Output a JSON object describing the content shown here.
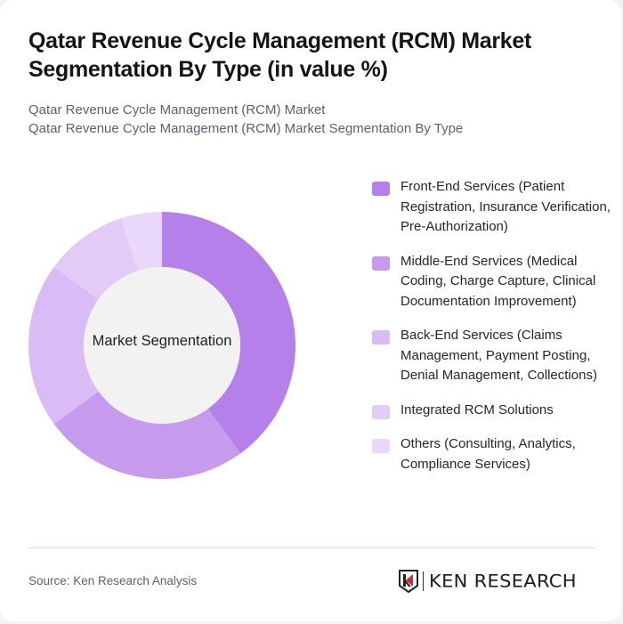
{
  "title": "Qatar Revenue Cycle Management (RCM) Market Segmentation By Type (in value %)",
  "subtitle": {
    "line1": "Qatar Revenue Cycle Management (RCM) Market",
    "line2": "Qatar Revenue Cycle Management (RCM) Market Segmentation By Type"
  },
  "center_label": "Market Segmentation",
  "legend": [
    {
      "label": "Front-End Services (Patient Registration, Insurance Verification, Pre-Authorization)",
      "color": "#b580ea"
    },
    {
      "label": "Middle-End Services (Medical Coding, Charge Capture, Clinical Documentation Improvement)",
      "color": "#c69bee"
    },
    {
      "label": "Back-End Services (Claims Management, Payment Posting, Denial Management, Collections)",
      "color": "#d9bcf5"
    },
    {
      "label": "Integrated RCM Solutions",
      "color": "#e2cbf7"
    },
    {
      "label": "Others (Consulting, Analytics, Compliance Services)",
      "color": "#e9d8fa"
    }
  ],
  "footer": {
    "source": "Source: Ken Research Analysis",
    "logo_text": "KEN RESEARCH"
  },
  "chart_data": {
    "type": "pie",
    "subtype": "donut",
    "title": "Qatar Revenue Cycle Management (RCM) Market Segmentation By Type (in value %)",
    "center_label": "Market Segmentation",
    "categories": [
      "Front-End Services (Patient Registration, Insurance Verification, Pre-Authorization)",
      "Middle-End Services (Medical Coding, Charge Capture, Clinical Documentation Improvement)",
      "Back-End Services (Claims Management, Payment Posting, Denial Management, Collections)",
      "Integrated RCM Solutions",
      "Others (Consulting, Analytics, Compliance Services)"
    ],
    "values": [
      40,
      25,
      20,
      10,
      5
    ],
    "unit": "%",
    "colors": [
      "#b580ea",
      "#c69bee",
      "#d9bcf5",
      "#e2cbf7",
      "#e9d8fa"
    ],
    "legend_position": "right",
    "start_angle": "top, clockwise"
  }
}
